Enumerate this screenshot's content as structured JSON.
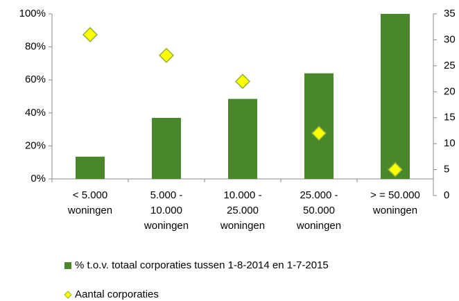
{
  "chart_data": {
    "type": "bar_scatter",
    "categories": [
      [
        "< 5.000",
        "woningen"
      ],
      [
        "5.000 -",
        "10.000",
        "woningen"
      ],
      [
        "10.000 -",
        "25.000",
        "woningen"
      ],
      [
        "25.000 -",
        "50.000",
        "woningen"
      ],
      [
        "> = 50.000",
        "woningen"
      ]
    ],
    "series": [
      {
        "name": "% t.o.v. totaal corporaties  tussen 1-8-2014 en 1-7-2015",
        "type": "bar",
        "color": "#4a862a",
        "values": [
          13.5,
          37,
          48.5,
          64,
          100
        ]
      },
      {
        "name": "Aantal corporaties",
        "type": "scatter",
        "axis": "y2",
        "color": "#ffff00",
        "values": [
          31,
          27,
          22,
          12,
          5
        ]
      }
    ],
    "ylim": [
      0,
      100
    ],
    "yticks": [
      {
        "value": 0,
        "label": "0%"
      },
      {
        "value": 20,
        "label": "20%"
      },
      {
        "value": 40,
        "label": "40%"
      },
      {
        "value": 60,
        "label": "60%"
      },
      {
        "value": 80,
        "label": "80%"
      },
      {
        "value": 100,
        "label": "100%"
      }
    ],
    "y2lim": [
      0,
      35
    ],
    "y2ticks": [
      0,
      5,
      10,
      15,
      20,
      25,
      30,
      35
    ],
    "legend": "bottom"
  }
}
